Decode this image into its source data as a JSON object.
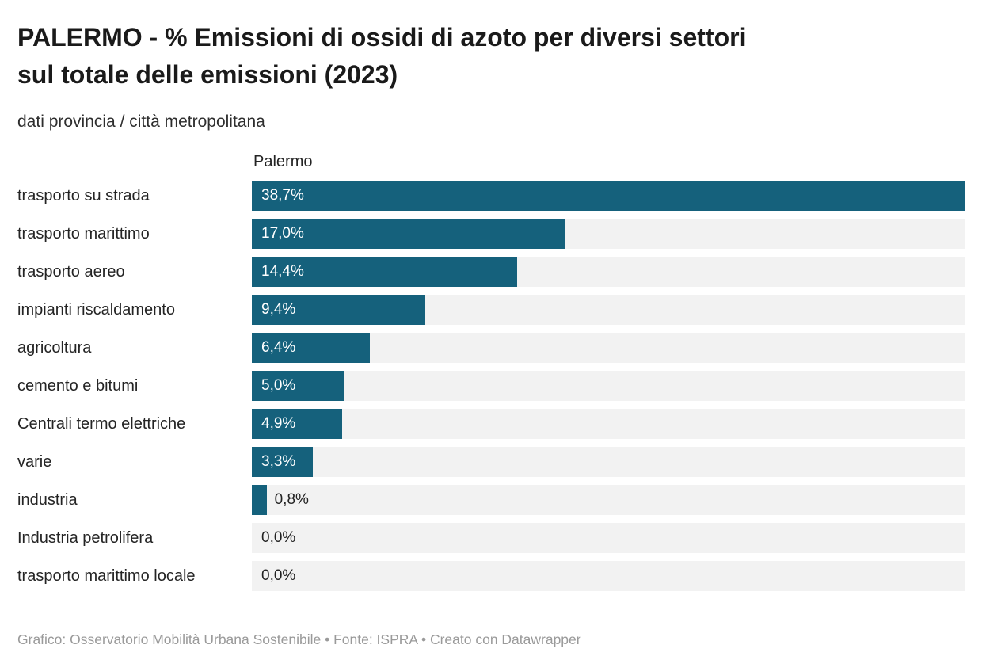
{
  "header": {
    "title_lines": [
      "PALERMO - % Emissioni di ossidi di azoto per diversi settori",
      "sul totale delle emissioni (2023)"
    ],
    "subtitle": "dati provincia / città metropolitana"
  },
  "chart_data": {
    "type": "bar",
    "orientation": "horizontal",
    "column_header": "Palermo",
    "categories": [
      "trasporto su strada",
      "trasporto marittimo",
      "trasporto aereo",
      "impianti riscaldamento",
      "agricoltura",
      "cemento e bitumi",
      "Centrali termo elettriche",
      "varie",
      "industria",
      "Industria petrolifera",
      "trasporto marittimo locale"
    ],
    "values": [
      38.7,
      17.0,
      14.4,
      9.4,
      6.4,
      5.0,
      4.9,
      3.3,
      0.8,
      0.0,
      0.0
    ],
    "value_labels": [
      "38,7%",
      "17,0%",
      "14,4%",
      "9,4%",
      "6,4%",
      "5,0%",
      "4,9%",
      "3,3%",
      "0,8%",
      "0,0%",
      "0,0%"
    ],
    "xlim": [
      0,
      38.7
    ],
    "grid": false,
    "legend": "none",
    "bar_color": "#15617c",
    "track_color": "#f2f2f2",
    "inside_label_min_value": 2.5
  },
  "footer": {
    "text": "Grafico: Osservatorio Mobilità Urbana Sostenibile • Fonte: ISPRA • Creato con Datawrapper"
  }
}
